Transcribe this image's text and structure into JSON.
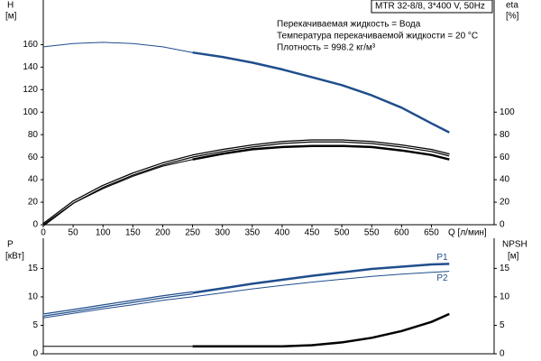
{
  "chart_data": [
    {
      "type": "line",
      "title": "MTR 32-8/8, 3*400 V, 50Hz",
      "annotations": [
        "Перекачиваемая жидкость = Вода",
        "Температура перекачиваемой жидкости = 20 °C",
        "Плотность = 998.2 кг/м³"
      ],
      "ylabel": "H",
      "yunit": "[м]",
      "y2label": "eta",
      "y2unit": "[%]",
      "xlabel": "Q [л/мин]",
      "xlim": [
        0,
        755
      ],
      "xticks": [
        0,
        50,
        100,
        150,
        200,
        250,
        300,
        350,
        400,
        450,
        500,
        550,
        600,
        650
      ],
      "ylim": [
        0,
        190
      ],
      "yticks": [
        0,
        20,
        40,
        60,
        80,
        100,
        120,
        140,
        160
      ],
      "y2lim": [
        0,
        190
      ],
      "y2ticks": [
        0,
        20,
        40,
        60,
        80,
        100
      ],
      "series": [
        {
          "color": "#1f4e8c",
          "width": 1,
          "x": [
            0,
            50,
            100,
            150,
            200,
            250
          ],
          "values": [
            158,
            161,
            162,
            161,
            158,
            153
          ]
        },
        {
          "color": "#1f4e8c",
          "width": 2.5,
          "x": [
            250,
            300,
            350,
            400,
            450,
            500,
            550,
            600,
            650,
            680
          ],
          "values": [
            153,
            149,
            144,
            138,
            131,
            124,
            115,
            104,
            90,
            82
          ]
        },
        {
          "color": "#000000",
          "width": 1,
          "style": "double",
          "axis": "y2",
          "x": [
            0,
            50,
            100,
            150,
            200,
            250,
            300,
            350,
            400,
            450,
            500,
            550,
            600,
            650,
            680
          ],
          "values": [
            0,
            20,
            34,
            45,
            54,
            61,
            66,
            70,
            73,
            74.5,
            74.5,
            73,
            70,
            66,
            62
          ]
        },
        {
          "color": "#000000",
          "width": 1,
          "axis": "y2",
          "x": [
            0,
            50,
            100,
            150,
            200,
            250
          ],
          "values": [
            0,
            19,
            32,
            43,
            52,
            58
          ]
        },
        {
          "color": "#000000",
          "width": 2.5,
          "axis": "y2",
          "x": [
            250,
            300,
            350,
            400,
            450,
            500,
            550,
            600,
            650,
            680
          ],
          "values": [
            58,
            63,
            67,
            69,
            70,
            70,
            69,
            66,
            62,
            58
          ]
        }
      ]
    },
    {
      "type": "line",
      "ylabel": "P",
      "yunit": "[кВт]",
      "y2label": "NPSH",
      "y2unit": "[м]",
      "xlim": [
        0,
        755
      ],
      "ylim": [
        0,
        20.3
      ],
      "yticks": [
        0,
        5,
        10,
        15
      ],
      "y2lim": [
        0,
        20.3
      ],
      "y2ticks": [
        0,
        5,
        10,
        15
      ],
      "series": [
        {
          "color": "#1f4e8c",
          "width": 1,
          "style": "double",
          "x": [
            0,
            50,
            100,
            150,
            200,
            250
          ],
          "values": [
            6.8,
            7.6,
            8.4,
            9.2,
            10,
            10.7
          ]
        },
        {
          "name": "P1",
          "color": "#1f4e8c",
          "width": 2.5,
          "x": [
            250,
            300,
            350,
            400,
            450,
            500,
            550,
            600,
            650,
            680
          ],
          "values": [
            10.7,
            11.5,
            12.3,
            13,
            13.7,
            14.3,
            14.9,
            15.3,
            15.7,
            15.8
          ]
        },
        {
          "name": "P2",
          "color": "#1f4e8c",
          "width": 1,
          "x": [
            0,
            50,
            100,
            150,
            200,
            250,
            300,
            350,
            400,
            450,
            500,
            550,
            600,
            650,
            680
          ],
          "values": [
            6.3,
            7.1,
            7.9,
            8.6,
            9.4,
            10.0,
            10.7,
            11.4,
            12,
            12.6,
            13.1,
            13.6,
            14,
            14.3,
            14.5
          ]
        },
        {
          "color": "#000000",
          "width": 1,
          "axis": "y2",
          "x": [
            0,
            250
          ],
          "values": [
            1.3,
            1.3
          ]
        },
        {
          "color": "#000000",
          "width": 2.5,
          "axis": "y2",
          "x": [
            250,
            300,
            350,
            400,
            450,
            500,
            550,
            600,
            650,
            680
          ],
          "values": [
            1.3,
            1.3,
            1.3,
            1.3,
            1.5,
            2,
            2.8,
            4,
            5.6,
            7
          ]
        }
      ]
    }
  ]
}
